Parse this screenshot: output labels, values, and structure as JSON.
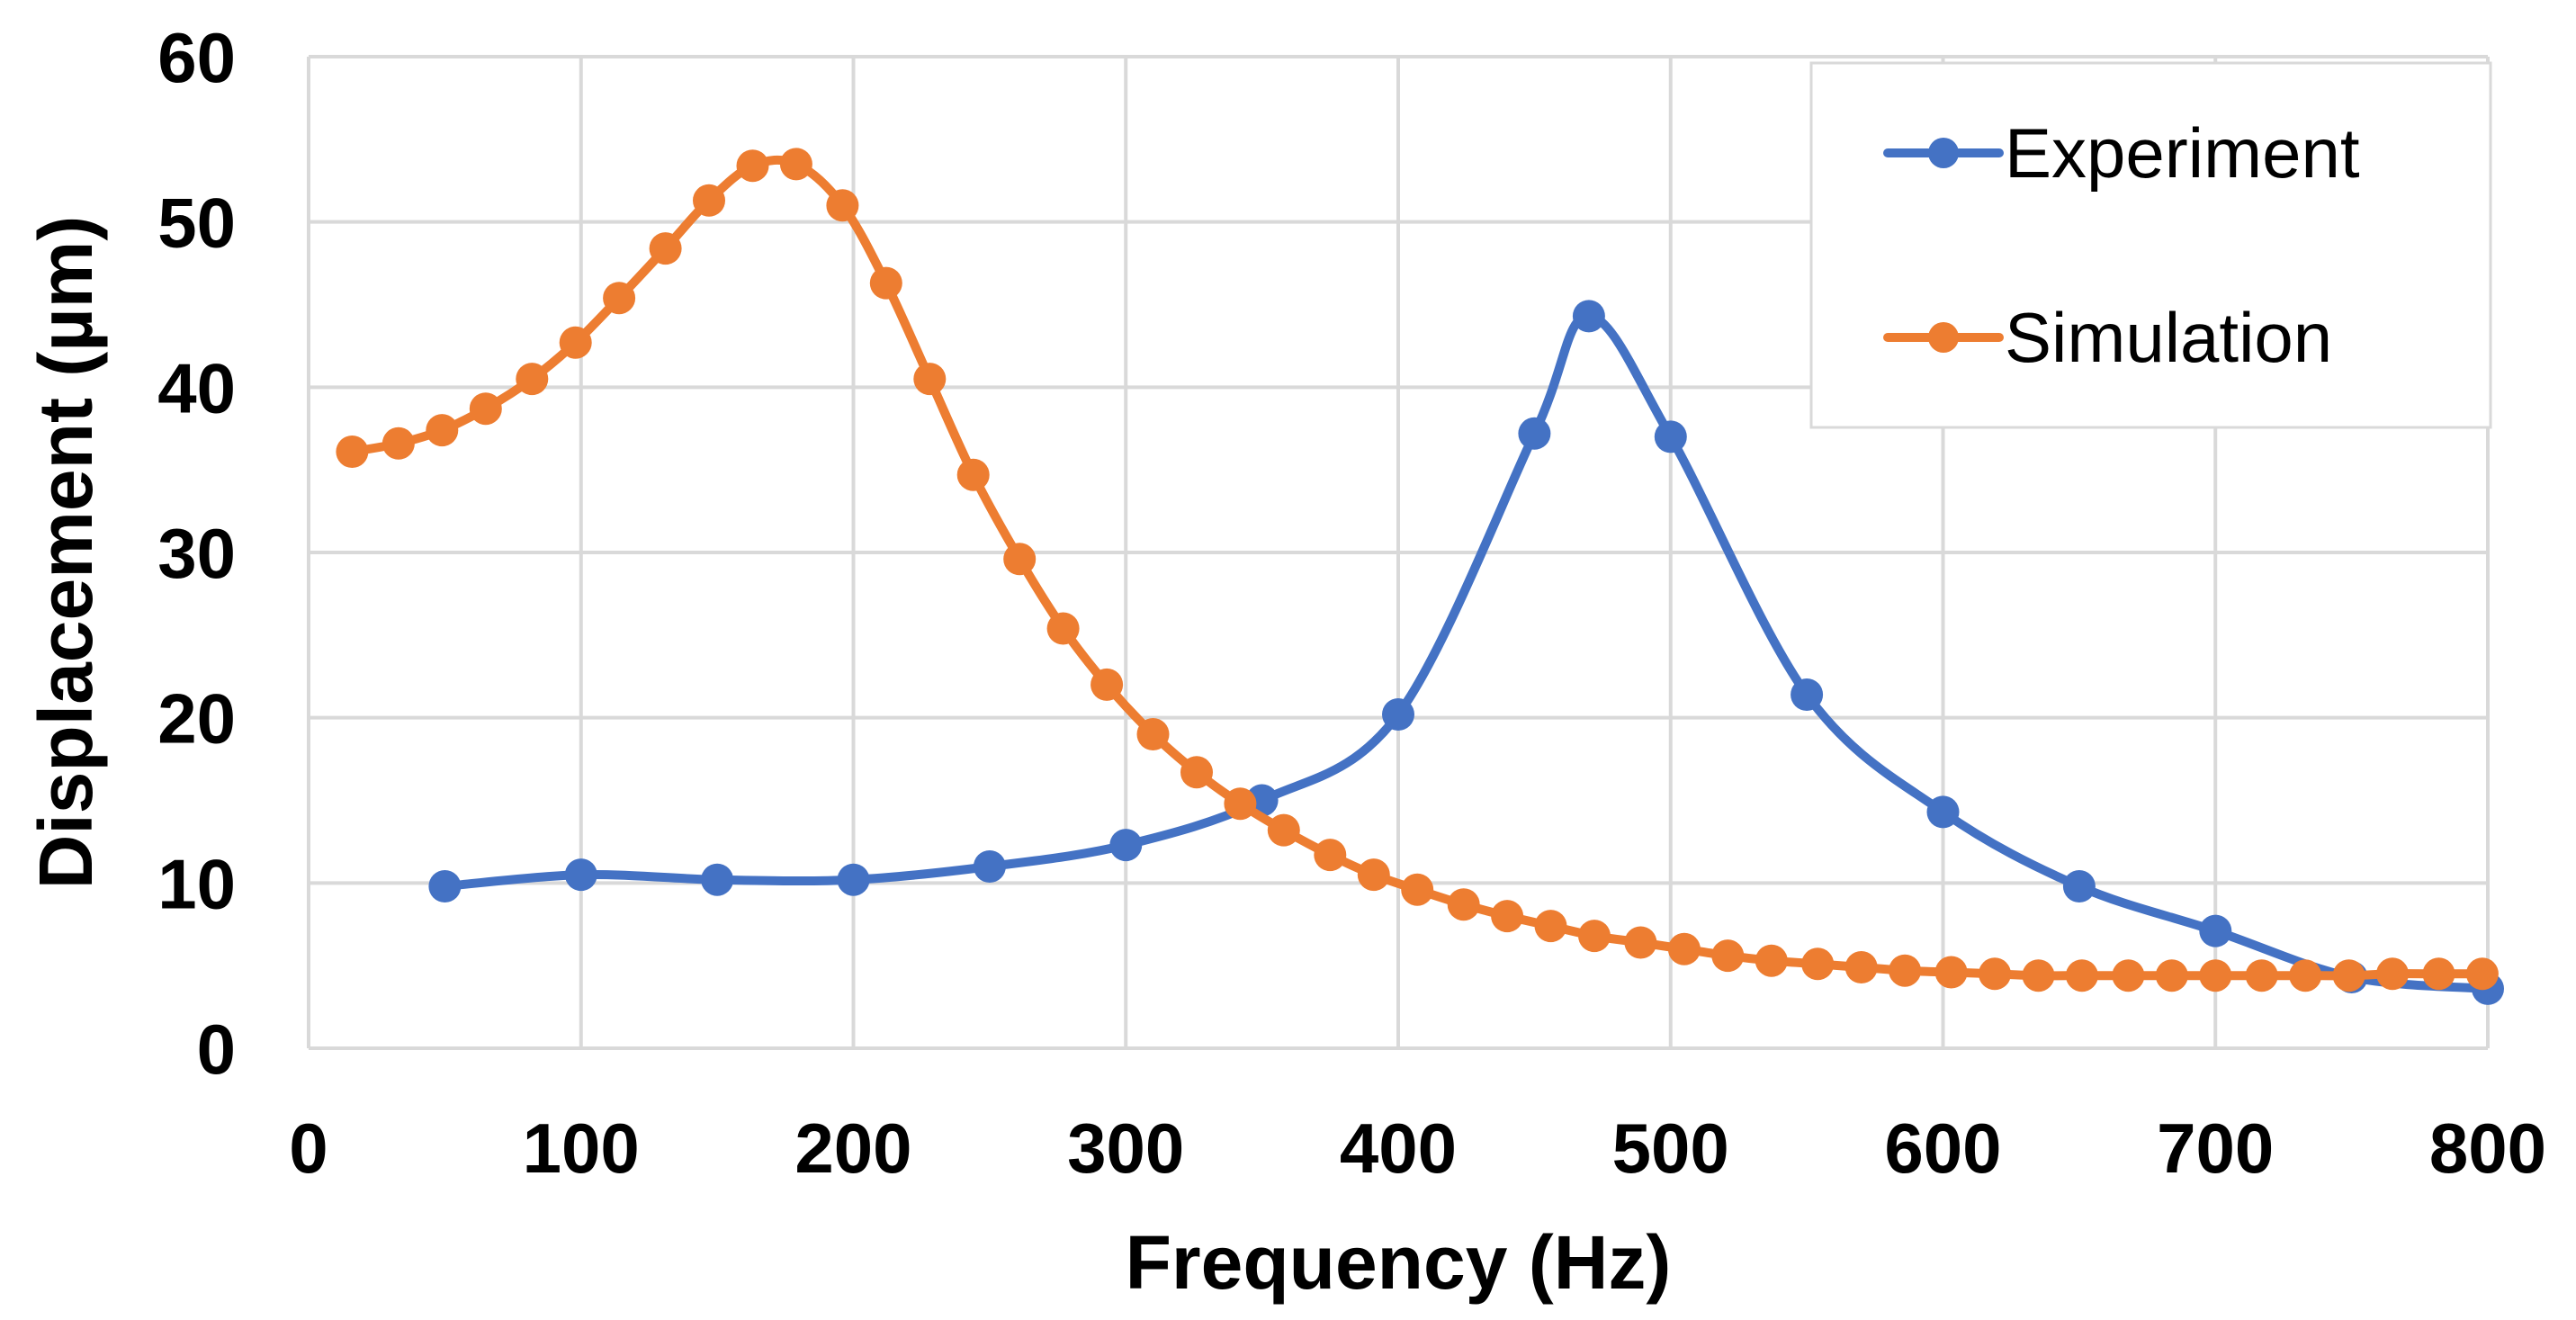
{
  "chart_data": {
    "type": "line",
    "title": "",
    "xlabel": "Frequency (Hz)",
    "ylabel": "Displacement (µm)",
    "xlim": [
      0,
      800
    ],
    "ylim": [
      0,
      60
    ],
    "xticks": [
      0,
      100,
      200,
      300,
      400,
      500,
      600,
      700,
      800
    ],
    "yticks": [
      0,
      10,
      20,
      30,
      40,
      50,
      60
    ],
    "grid": true,
    "legend_position": "top-right",
    "series": [
      {
        "name": "Experiment",
        "color": "#4472c4",
        "marker": "circle",
        "smooth": true,
        "x": [
          50,
          100,
          150,
          200,
          250,
          300,
          350,
          400,
          450,
          470,
          500,
          550,
          600,
          650,
          700,
          750,
          800
        ],
        "y": [
          9.8,
          10.5,
          10.2,
          10.2,
          11.0,
          12.3,
          15.0,
          20.2,
          37.2,
          44.3,
          37.0,
          21.4,
          14.3,
          9.8,
          7.1,
          4.3,
          3.6
        ]
      },
      {
        "name": "Simulation",
        "color": "#ed7d31",
        "marker": "circle",
        "smooth": true,
        "x": [
          16,
          33,
          49,
          65,
          82,
          98,
          114,
          131,
          147,
          163,
          179,
          196,
          212,
          228,
          244,
          261,
          277,
          293,
          310,
          326,
          342,
          358,
          375,
          391,
          407,
          424,
          440,
          456,
          472,
          489,
          505,
          521,
          537,
          554,
          570,
          586,
          603,
          619,
          635,
          651,
          668,
          684,
          700,
          717,
          733,
          749,
          765,
          782,
          798
        ],
        "y": [
          36.1,
          36.6,
          37.4,
          38.7,
          40.5,
          42.7,
          45.4,
          48.4,
          51.3,
          53.4,
          53.5,
          51.0,
          46.3,
          40.5,
          34.7,
          29.6,
          25.4,
          22.0,
          19.0,
          16.7,
          14.8,
          13.2,
          11.7,
          10.5,
          9.6,
          8.7,
          8.0,
          7.4,
          6.8,
          6.4,
          6.0,
          5.6,
          5.3,
          5.1,
          4.9,
          4.7,
          4.6,
          4.5,
          4.4,
          4.4,
          4.4,
          4.4,
          4.4,
          4.4,
          4.4,
          4.4,
          4.5,
          4.5,
          4.5
        ]
      }
    ]
  }
}
